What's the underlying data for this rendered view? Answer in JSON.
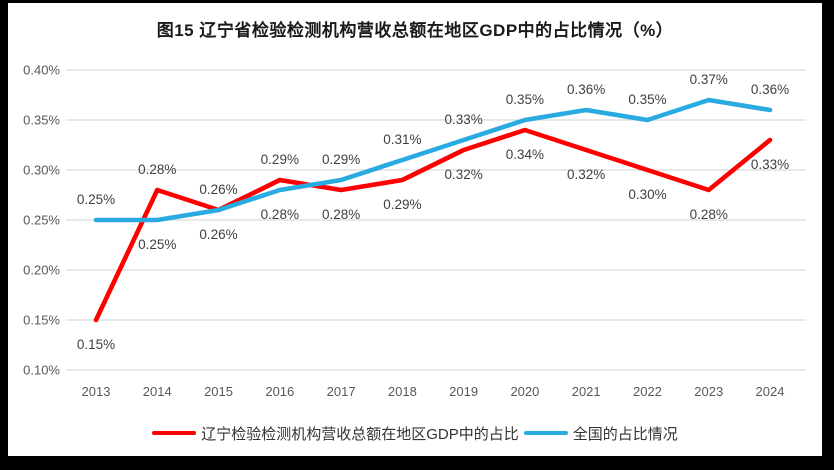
{
  "chart_data": {
    "type": "line",
    "title": "图15 辽宁省检验检测机构营收总额在地区GDP中的占比情况（%）",
    "categories": [
      "2013",
      "2014",
      "2015",
      "2016",
      "2017",
      "2018",
      "2019",
      "2020",
      "2021",
      "2022",
      "2023",
      "2024"
    ],
    "y_ticks": [
      "0.40%",
      "0.35%",
      "0.30%",
      "0.25%",
      "0.20%",
      "0.15%",
      "0.10%"
    ],
    "ylim": [
      0.1,
      0.4
    ],
    "grid": true,
    "legend_position": "bottom",
    "series": [
      {
        "name": "辽宁检验检测机构营收总额在地区GDP中的占比",
        "color": "#FE0000",
        "values": [
          0.15,
          0.28,
          0.26,
          0.29,
          0.28,
          0.29,
          0.32,
          0.34,
          0.32,
          0.3,
          0.28,
          0.33
        ],
        "point_labels": [
          "0.15%",
          "0.28%",
          "0.26%",
          "0.29%",
          "0.28%",
          "0.29%",
          "0.32%",
          "0.34%",
          "0.32%",
          "0.30%",
          "0.28%",
          "0.33%"
        ],
        "label_positions": [
          "below",
          "above",
          "above",
          "above",
          "below",
          "below",
          "below",
          "below",
          "below",
          "below",
          "below",
          "below"
        ]
      },
      {
        "name": "全国的占比情况",
        "color": "#29ABE2",
        "values": [
          0.25,
          0.25,
          0.26,
          0.28,
          0.29,
          0.31,
          0.33,
          0.35,
          0.36,
          0.35,
          0.37,
          0.36
        ],
        "point_labels": [
          "0.25%",
          "0.25%",
          "0.26%",
          "0.28%",
          "0.29%",
          "0.31%",
          "0.33%",
          "0.35%",
          "0.36%",
          "0.35%",
          "0.37%",
          "0.36%"
        ],
        "label_positions": [
          "above",
          "below",
          "below",
          "below",
          "above",
          "above",
          "above",
          "above",
          "above",
          "above",
          "above",
          "above"
        ]
      }
    ],
    "colors": {
      "gridline": "#D9D9D9",
      "axis_text": "#595959",
      "data_label": "#3F3F3F",
      "title_text": "#1A1A1A",
      "background": "#FFFFFF",
      "frame_border": "#000000"
    }
  }
}
